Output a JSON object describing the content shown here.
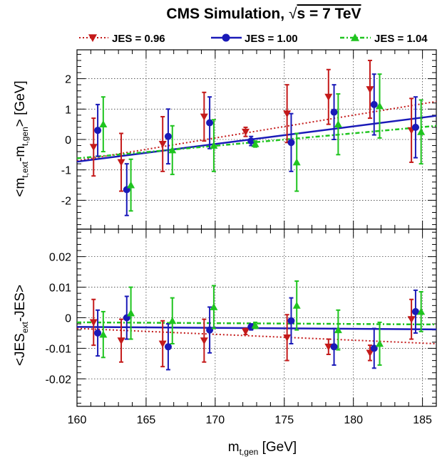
{
  "title": {
    "prefix": "CMS Simulation,  ",
    "sqrt_sign": "√",
    "suffix": "s = 7 TeV"
  },
  "legend": [
    {
      "label": "JES = 0.96",
      "color": "#c41a1a",
      "marker": "triangle-down",
      "line": "dotted"
    },
    {
      "label": "JES = 1.00",
      "color": "#1a1ab8",
      "marker": "circle",
      "line": "solid"
    },
    {
      "label": "JES = 1.04",
      "color": "#1fc41f",
      "marker": "triangle-up",
      "line": "dashed"
    }
  ],
  "colors": {
    "jes096": "#c41a1a",
    "jes100": "#1a1ab8",
    "jes104": "#1fc41f"
  },
  "chart_data": [
    {
      "type": "scatter",
      "panel": "top",
      "ylabel": {
        "prefix": "<m",
        "sub1": "t,ext",
        "mid": "-m",
        "sub2": "t,gen",
        "suffix": "> [GeV]"
      },
      "xlim": [
        160,
        186
      ],
      "ylim": [
        -2.95,
        2.95
      ],
      "yticks": [
        -2,
        -1,
        0,
        1,
        2
      ],
      "ytick_labels": [
        "-2",
        "-1",
        "0",
        "1",
        "2"
      ],
      "grid": true,
      "series": [
        {
          "name": "JES = 0.96",
          "x": [
            161.2,
            163.2,
            166.2,
            169.2,
            172.2,
            175.2,
            178.2,
            181.2,
            184.2
          ],
          "y": [
            -0.25,
            -0.75,
            -0.15,
            0.75,
            0.25,
            0.85,
            1.4,
            1.65,
            0.3
          ],
          "err": [
            0.95,
            0.95,
            0.9,
            0.8,
            0.15,
            0.95,
            0.9,
            0.95,
            1.05
          ],
          "fit": {
            "x": [
              160,
              186
            ],
            "y": [
              -0.7,
              1.25
            ]
          }
        },
        {
          "name": "JES = 1.00",
          "x": [
            161.5,
            163.6,
            166.6,
            169.6,
            172.6,
            175.5,
            178.6,
            181.5,
            184.5
          ],
          "y": [
            0.3,
            -1.65,
            0.1,
            0.55,
            -0.05,
            -0.1,
            0.9,
            1.15,
            0.4
          ],
          "err": [
            0.85,
            0.85,
            0.9,
            0.85,
            0.15,
            0.95,
            0.9,
            1.0,
            1.0
          ],
          "fit": {
            "x": [
              160,
              186
            ],
            "y": [
              -0.73,
              0.78
            ]
          }
        },
        {
          "name": "JES = 1.04",
          "x": [
            161.9,
            163.9,
            166.9,
            169.9,
            172.9,
            175.9,
            178.9,
            181.9,
            184.9
          ],
          "y": [
            0.5,
            -1.5,
            -0.35,
            -0.2,
            -0.15,
            -0.75,
            0.5,
            1.1,
            0.25
          ],
          "err": [
            0.9,
            0.85,
            0.8,
            0.85,
            0.1,
            0.95,
            1.0,
            1.05,
            1.05
          ],
          "fit": {
            "x": [
              160,
              186
            ],
            "y": [
              -0.62,
              0.45
            ]
          }
        }
      ]
    },
    {
      "type": "scatter",
      "panel": "bottom",
      "xlabel": {
        "prefix": "m",
        "sub": "t,gen",
        "suffix": " [GeV]"
      },
      "ylabel": {
        "prefix": "<JES",
        "sub": "ext",
        "suffix": "-JES>"
      },
      "xlim": [
        160,
        186
      ],
      "xticks": [
        160,
        165,
        170,
        175,
        180,
        185
      ],
      "xtick_labels": [
        "160",
        "165",
        "170",
        "175",
        "180",
        "185"
      ],
      "ylim": [
        -0.029,
        0.029
      ],
      "yticks": [
        -0.02,
        -0.01,
        0,
        0.01,
        0.02
      ],
      "ytick_labels": [
        "-0.02",
        "-0.01",
        "0",
        "0.01",
        "0.02"
      ],
      "grid": true,
      "series": [
        {
          "name": "JES = 0.96",
          "x": [
            161.2,
            163.2,
            166.2,
            169.2,
            172.2,
            175.2,
            178.2,
            181.2,
            184.2
          ],
          "y": [
            -0.0015,
            -0.0075,
            -0.0085,
            -0.0075,
            -0.0045,
            -0.0065,
            -0.0095,
            -0.0115,
            -0.0005
          ],
          "err": [
            0.0075,
            0.007,
            0.0075,
            0.007,
            0.001,
            0.0075,
            0.0025,
            0.0025,
            0.0065
          ],
          "fit": {
            "x": [
              160,
              186
            ],
            "y": [
              -0.0035,
              -0.0085
            ]
          }
        },
        {
          "name": "JES = 1.00",
          "x": [
            161.5,
            163.6,
            166.6,
            169.6,
            172.6,
            175.5,
            178.6,
            181.5,
            184.5
          ],
          "y": [
            -0.005,
            0.0,
            -0.0095,
            -0.004,
            -0.003,
            -0.001,
            -0.0095,
            -0.01,
            0.002
          ],
          "err": [
            0.0075,
            0.007,
            0.0075,
            0.0075,
            0.001,
            0.0075,
            0.006,
            0.0065,
            0.007
          ],
          "fit": {
            "x": [
              160,
              186
            ],
            "y": [
              -0.003,
              -0.0038
            ]
          }
        },
        {
          "name": "JES = 1.04",
          "x": [
            161.9,
            163.9,
            166.9,
            169.9,
            172.9,
            175.9,
            178.9,
            181.9,
            184.9
          ],
          "y": [
            -0.0055,
            0.0015,
            -0.001,
            0.0035,
            -0.0025,
            0.004,
            -0.004,
            -0.0085,
            0.002
          ],
          "err": [
            0.0075,
            0.0085,
            0.0075,
            0.007,
            0.001,
            0.008,
            0.0065,
            0.007,
            0.0065
          ],
          "fit": {
            "x": [
              160,
              186
            ],
            "y": [
              -0.0015,
              -0.0022
            ]
          }
        }
      ]
    }
  ]
}
